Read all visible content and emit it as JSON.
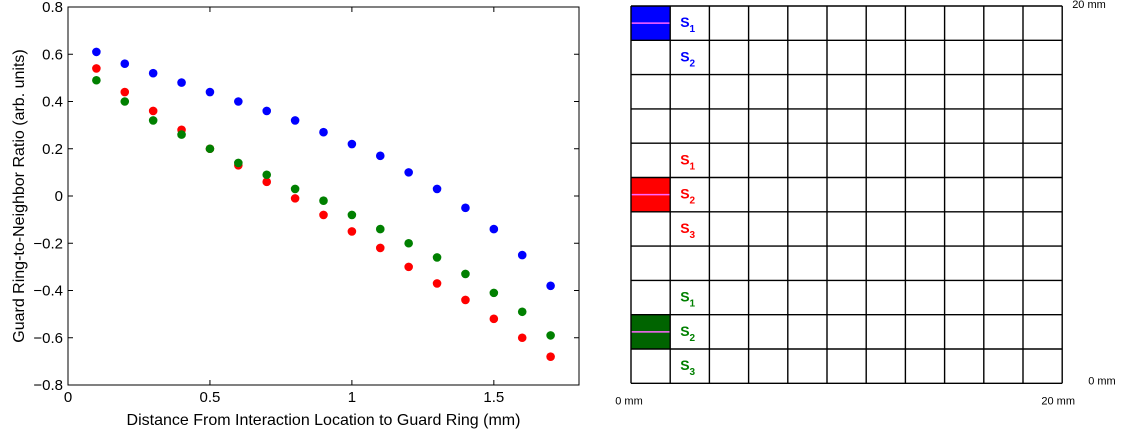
{
  "chart_data": [
    {
      "type": "scatter",
      "title": "",
      "xlabel": "Distance From Interaction Location to Guard Ring (mm)",
      "ylabel": "Guard Ring-to-Neighbor Ratio (arb. units)",
      "xlim": [
        0,
        1.8
      ],
      "ylim": [
        -0.8,
        0.8
      ],
      "xticks": [
        "0",
        "0.5",
        "1",
        "1.5"
      ],
      "xtick_values": [
        0,
        0.5,
        1,
        1.5
      ],
      "yticks": [
        "0.8",
        "0.6",
        "0.4",
        "0.2",
        "0",
        "−0.2",
        "−0.4",
        "−0.6",
        "−0.8"
      ],
      "ytick_values": [
        0.8,
        0.6,
        0.4,
        0.2,
        0,
        -0.2,
        -0.4,
        -0.6,
        -0.8
      ],
      "grid": false,
      "series": [
        {
          "color": "#0000ff",
          "x": [
            0.1,
            0.2,
            0.3,
            0.4,
            0.5,
            0.6,
            0.7,
            0.8,
            0.9,
            1.0,
            1.1,
            1.2,
            1.3,
            1.4,
            1.5,
            1.6,
            1.7
          ],
          "y": [
            0.61,
            0.56,
            0.52,
            0.48,
            0.44,
            0.4,
            0.36,
            0.32,
            0.27,
            0.22,
            0.17,
            0.1,
            0.03,
            -0.05,
            -0.14,
            -0.25,
            -0.38
          ]
        },
        {
          "color": "#ff0000",
          "x": [
            0.1,
            0.2,
            0.3,
            0.4,
            0.5,
            0.6,
            0.7,
            0.8,
            0.9,
            1.0,
            1.1,
            1.2,
            1.3,
            1.4,
            1.5,
            1.6,
            1.7
          ],
          "y": [
            0.54,
            0.44,
            0.36,
            0.28,
            0.2,
            0.13,
            0.06,
            -0.01,
            -0.08,
            -0.15,
            -0.22,
            -0.3,
            -0.37,
            -0.44,
            -0.52,
            -0.6,
            -0.68
          ]
        },
        {
          "color": "#008000",
          "x": [
            0.1,
            0.2,
            0.3,
            0.4,
            0.5,
            0.6,
            0.7,
            0.8,
            0.9,
            1.0,
            1.1,
            1.2,
            1.3,
            1.4,
            1.5,
            1.6,
            1.7
          ],
          "y": [
            0.49,
            0.4,
            0.32,
            0.26,
            0.2,
            0.14,
            0.09,
            0.03,
            -0.02,
            -0.08,
            -0.14,
            -0.2,
            -0.26,
            -0.33,
            -0.41,
            -0.49,
            -0.59
          ]
        }
      ]
    },
    {
      "type": "diagram",
      "grid_columns": 11,
      "grid_rows": 11,
      "axis_labels": {
        "top_right": "20 mm",
        "bottom_right": "0 mm",
        "bottom_left": "0 mm",
        "bottom_right_x": "20 mm"
      },
      "filled_cells": [
        {
          "row": 0,
          "col": 0,
          "color": "#0000ff"
        },
        {
          "row": 5,
          "col": 0,
          "color": "#ff0000"
        },
        {
          "row": 9,
          "col": 0,
          "color": "#006400"
        }
      ],
      "labels": [
        {
          "text": "S",
          "sub": "1",
          "row": 0,
          "color": "#0000ff"
        },
        {
          "text": "S",
          "sub": "2",
          "row": 1,
          "color": "#0000ff"
        },
        {
          "text": "S",
          "sub": "1",
          "row": 4,
          "color": "#ff0000"
        },
        {
          "text": "S",
          "sub": "2",
          "row": 5,
          "color": "#ff0000"
        },
        {
          "text": "S",
          "sub": "3",
          "row": 6,
          "color": "#ff0000"
        },
        {
          "text": "S",
          "sub": "1",
          "row": 8,
          "color": "#008000"
        },
        {
          "text": "S",
          "sub": "2",
          "row": 9,
          "color": "#008000"
        },
        {
          "text": "S",
          "sub": "3",
          "row": 10,
          "color": "#008000"
        }
      ]
    }
  ]
}
